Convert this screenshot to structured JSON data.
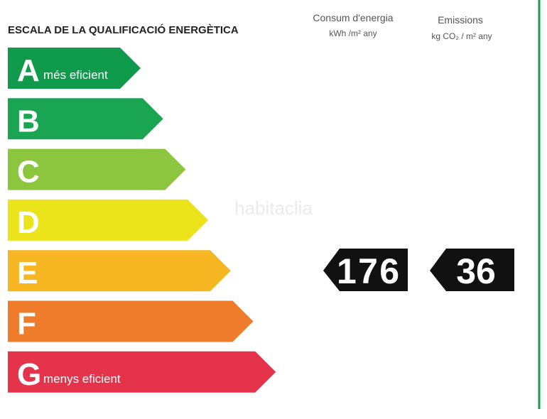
{
  "title": "ESCALA DE LA QUALIFICACIÓ ENERGÈTICA",
  "columns": [
    {
      "title": "Consum d'energia",
      "unit": "kWh /m² any"
    },
    {
      "title": "Emissions",
      "unit": "kg CO₂ / m² any"
    }
  ],
  "scale": [
    {
      "letter": "A",
      "label": "més eficient",
      "color": "#0f9a4c"
    },
    {
      "letter": "B",
      "color": "#1aa553"
    },
    {
      "letter": "C",
      "color": "#8cc63e"
    },
    {
      "letter": "D",
      "color": "#ebe41a"
    },
    {
      "letter": "E",
      "color": "#f6b722"
    },
    {
      "letter": "F",
      "color": "#ef7c2a"
    },
    {
      "letter": "G",
      "label": "menys eficient",
      "color": "#e5334b"
    }
  ],
  "values": [
    176,
    36
  ],
  "watermark": "habitaclia"
}
